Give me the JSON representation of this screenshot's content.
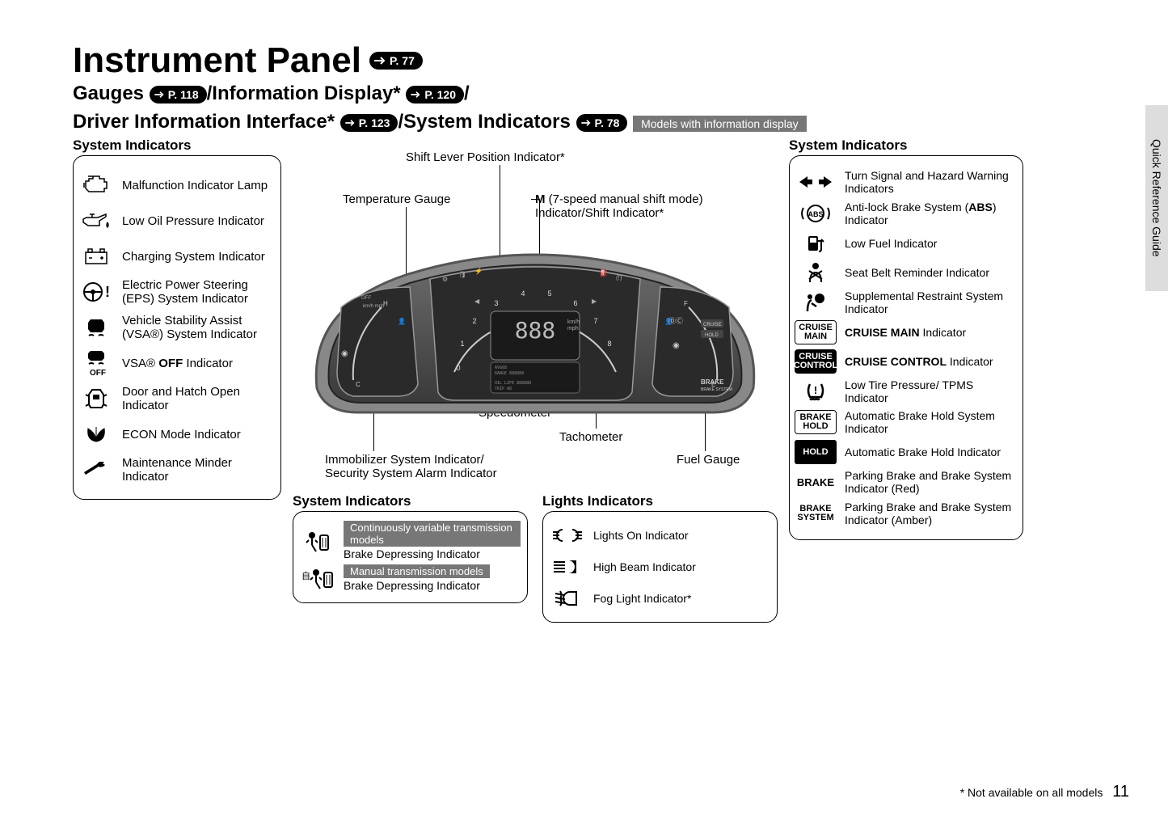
{
  "side_tab": "Quick Reference Guide",
  "title": "Instrument Panel",
  "title_pill": "P. 77",
  "sub_parts": {
    "p1": "Gauges",
    "pill1": "P. 118",
    "p2": "/Information Display*",
    "pill2": "P. 120",
    "p3": "/",
    "p4": "Driver Information Interface*",
    "pill4": "P. 123",
    "p5": "/System Indicators",
    "pill5": "P. 78"
  },
  "model_tag": "Models with information display",
  "left": {
    "title": "System Indicators",
    "items": [
      "Malfunction Indicator Lamp",
      "Low Oil Pressure Indicator",
      "Charging System Indicator",
      "Electric Power Steering (EPS) System Indicator",
      "Vehicle Stability Assist (VSA®) System Indicator",
      "VSA® <b>OFF</b> Indicator",
      "Door and Hatch Open Indicator",
      "ECON Mode Indicator",
      "Maintenance Minder Indicator"
    ]
  },
  "center": {
    "callouts": {
      "shift_lever": "Shift Lever Position Indicator*",
      "temp": "Temperature Gauge",
      "m_mode_a": "M",
      "m_mode_b": " (7-speed manual shift mode) Indicator/Shift Indicator*",
      "speedo": "Speedometer",
      "tacho": "Tachometer",
      "fuel": "Fuel Gauge",
      "immob": "Immobilizer System Indicator/ Security System Alarm Indicator"
    },
    "sys_box": {
      "title": "System Indicators",
      "tag1": "Continuously variable transmission models",
      "label1": "Brake Depressing Indicator",
      "tag2": "Manual transmission models",
      "label2": "Brake Depressing Indicator"
    },
    "lights_box": {
      "title": "Lights Indicators",
      "items": [
        "Lights On Indicator",
        "High Beam Indicator",
        "Fog Light Indicator*"
      ]
    }
  },
  "right": {
    "title": "System Indicators",
    "items": [
      "Turn Signal and Hazard Warning Indicators",
      "Anti-lock Brake System (<b>ABS</b>) Indicator",
      "Low Fuel Indicator",
      "Seat Belt Reminder Indicator",
      "Supplemental Restraint System Indicator",
      "<b>CRUISE MAIN</b> Indicator",
      "<b>CRUISE CONTROL</b> Indicator",
      "Low Tire Pressure/ TPMS Indicator",
      "Automatic Brake Hold System Indicator",
      "Automatic Brake Hold Indicator",
      "Parking Brake and Brake System Indicator (Red)",
      "Parking Brake and Brake System Indicator (Amber)"
    ]
  },
  "footnote": "* Not available on all models",
  "page_number": "11"
}
